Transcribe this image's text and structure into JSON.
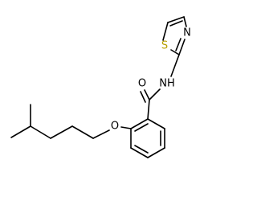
{
  "atoms": [
    {
      "label": "O"
    },
    {
      "label": "NH"
    },
    {
      "label": "S"
    },
    {
      "label": "N"
    },
    {
      "label": "O"
    }
  ]
}
